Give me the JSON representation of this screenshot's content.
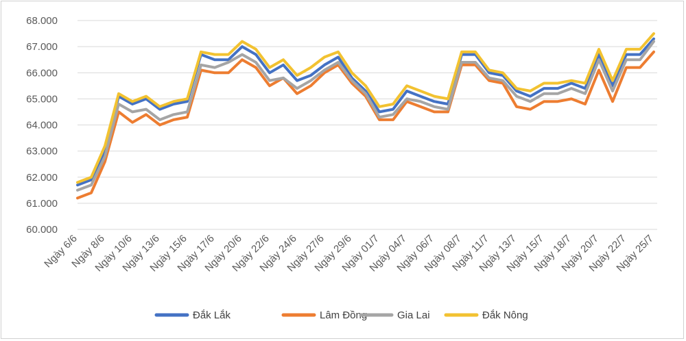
{
  "chart_data": {
    "type": "line",
    "title": "",
    "xlabel": "",
    "ylabel": "",
    "ylim": [
      60000,
      68000
    ],
    "y_ticks": [
      "60.000",
      "61.000",
      "62.000",
      "63.000",
      "64.000",
      "65.000",
      "66.000",
      "67.000",
      "68.000"
    ],
    "y_tick_values": [
      60000,
      61000,
      62000,
      63000,
      64000,
      65000,
      66000,
      67000,
      68000
    ],
    "grid": "horizontal",
    "legend_position": "bottom",
    "x_tick_labels": [
      "Ngày 6/6",
      "Ngày 8/6",
      "Ngày 10/6",
      "Ngày 13/6",
      "Ngày 15/6",
      "Ngày 17/6",
      "Ngày 20/6",
      "Ngày 22/6",
      "Ngày 24/6",
      "Ngày 27/6",
      "Ngày 29/6",
      "Ngày 01/7",
      "Ngày 04/7",
      "Ngày 06/7",
      "Ngày 08/7",
      "Ngày 11/7",
      "Ngày 13/7",
      "Ngày 15/7",
      "Ngày 18/7",
      "Ngày 20/7",
      "Ngày 22/7",
      "Ngày 25/7"
    ],
    "x_tick_every": 2,
    "point_count": 43,
    "series": [
      {
        "name": "Đắk Lắk",
        "color": "#4472C4",
        "values": [
          61700,
          61900,
          63000,
          65100,
          64800,
          65000,
          64600,
          64800,
          64900,
          66700,
          66500,
          66500,
          67000,
          66700,
          66000,
          66300,
          65700,
          65900,
          66300,
          66600,
          65800,
          65300,
          64500,
          64600,
          65300,
          65100,
          64900,
          64800,
          66700,
          66700,
          66000,
          65900,
          65300,
          65100,
          65400,
          65400,
          65600,
          65400,
          66700,
          65500,
          66700,
          66700,
          67300
        ]
      },
      {
        "name": "Lâm Đồng",
        "color": "#ED7D31",
        "values": [
          61200,
          61400,
          62600,
          64500,
          64100,
          64400,
          64000,
          64200,
          64300,
          66100,
          66000,
          66000,
          66500,
          66200,
          65500,
          65800,
          65200,
          65500,
          66000,
          66300,
          65600,
          65100,
          64200,
          64200,
          64900,
          64700,
          64500,
          64500,
          66300,
          66300,
          65700,
          65600,
          64700,
          64600,
          64900,
          64900,
          65000,
          64800,
          66100,
          64900,
          66200,
          66200,
          66800
        ]
      },
      {
        "name": "Gia Lai",
        "color": "#A5A5A5",
        "values": [
          61500,
          61700,
          62800,
          64800,
          64500,
          64600,
          64200,
          64400,
          64500,
          66300,
          66200,
          66400,
          66700,
          66400,
          65700,
          65800,
          65400,
          65700,
          66100,
          66400,
          65700,
          65200,
          64300,
          64400,
          65000,
          64900,
          64700,
          64600,
          66400,
          66400,
          65800,
          65700,
          65100,
          64900,
          65200,
          65200,
          65400,
          65200,
          66500,
          65300,
          66500,
          66500,
          67200
        ]
      },
      {
        "name": "Đắk Nông",
        "color": "#F2C231",
        "values": [
          61800,
          62000,
          63200,
          65200,
          64900,
          65100,
          64700,
          64900,
          65000,
          66800,
          66700,
          66700,
          67200,
          66900,
          66200,
          66500,
          65900,
          66200,
          66600,
          66800,
          66000,
          65500,
          64700,
          64800,
          65500,
          65300,
          65100,
          65000,
          66800,
          66800,
          66100,
          66000,
          65400,
          65300,
          65600,
          65600,
          65700,
          65600,
          66900,
          65700,
          66900,
          66900,
          67500
        ]
      }
    ]
  }
}
